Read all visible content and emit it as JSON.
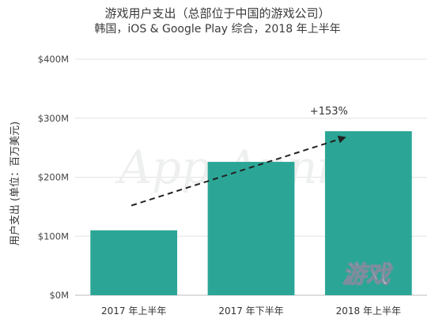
{
  "chart_data": {
    "type": "bar",
    "title": "游戏用户支出（总部位于中国的游戏公司）",
    "subtitle": "韩国，iOS & Google Play 综合，2018 年上半年",
    "ylabel": "用户支出 (单位：百万美元)",
    "categories": [
      "2017 年上半年",
      "2017 年下半年",
      "2018 年上半年"
    ],
    "values": [
      110,
      226,
      278
    ],
    "ylim": [
      0,
      400
    ],
    "yticks": [
      0,
      100,
      200,
      300,
      400
    ],
    "ytick_labels": [
      "$0M",
      "$100M",
      "$200M",
      "$300M",
      "$400M"
    ],
    "bar_color": "#2ba696",
    "grid": true,
    "trend_arrow": {
      "from_value": 152,
      "to_value": 278,
      "label": "+153%"
    }
  },
  "watermark": {
    "text": "App Annie",
    "stamp": "游戏"
  }
}
